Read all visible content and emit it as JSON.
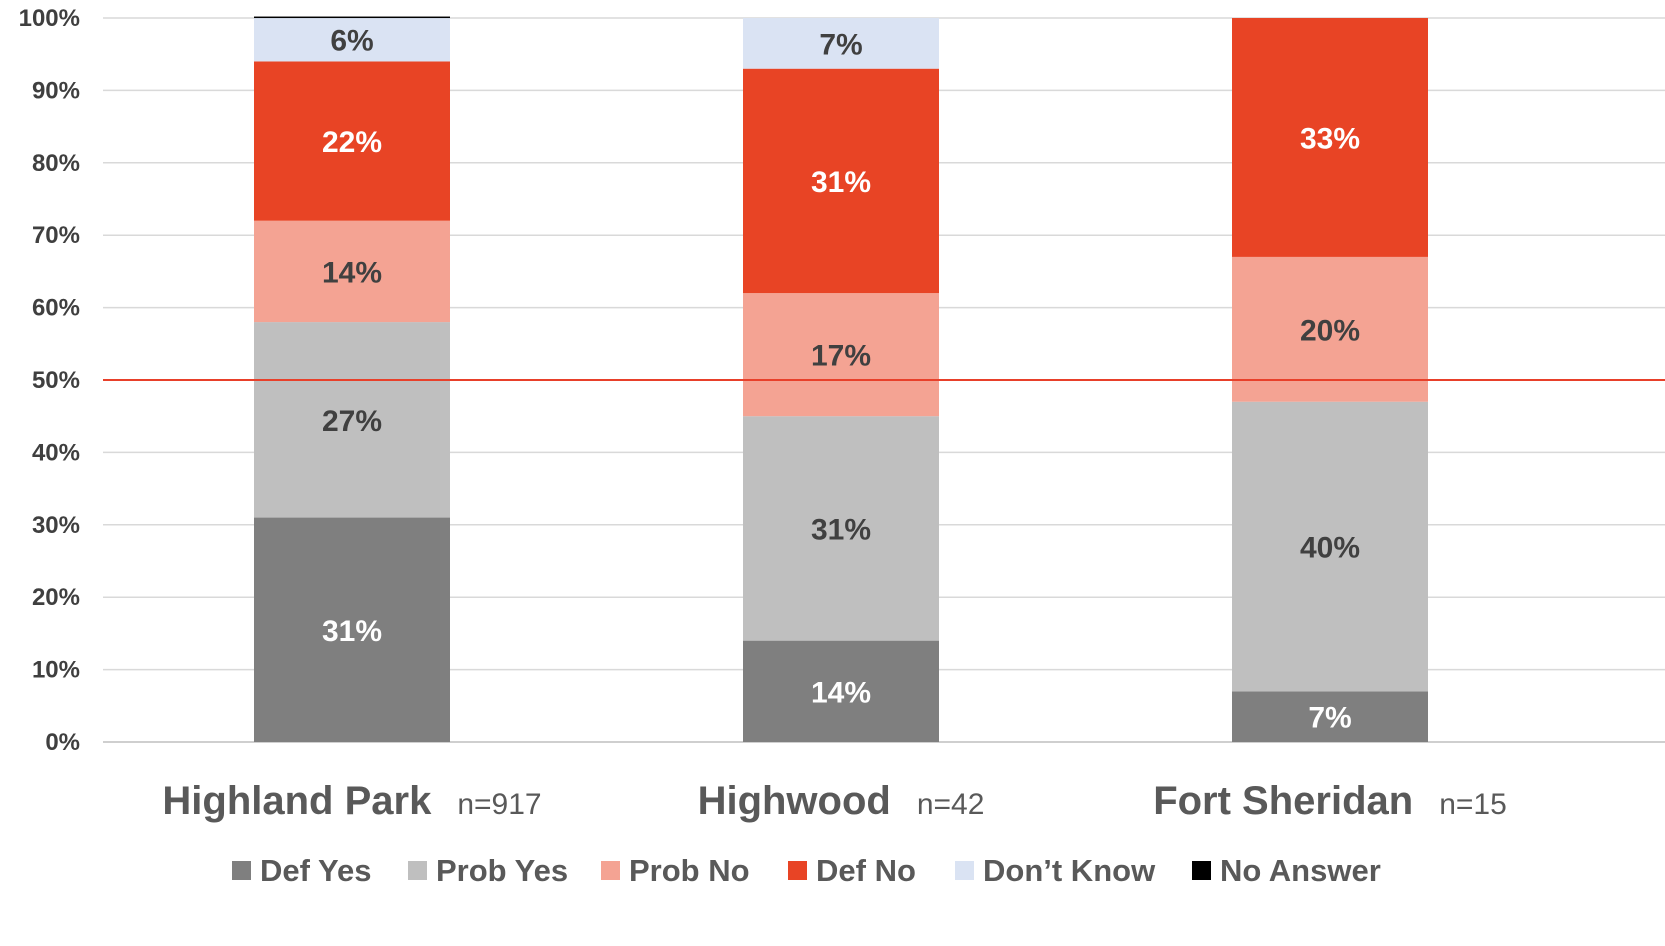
{
  "chart_data": {
    "type": "bar",
    "stacked": true,
    "percent": true,
    "title": "",
    "xlabel": "",
    "ylabel": "",
    "ylim": [
      0,
      100
    ],
    "y_ticks": [
      "0%",
      "10%",
      "20%",
      "30%",
      "40%",
      "50%",
      "60%",
      "70%",
      "80%",
      "90%",
      "100%"
    ],
    "grid": true,
    "reference_line": {
      "value": 50,
      "color": "#e8402a"
    },
    "categories": [
      "Highland Park",
      "Highwood",
      "Fort Sheridan"
    ],
    "sample_sizes": [
      "n=917",
      "n=42",
      "n=15"
    ],
    "legend_position": "bottom",
    "series": [
      {
        "name": "Def Yes",
        "color": "#7f7f7f",
        "label_color": "#ffffff",
        "values": [
          31,
          14,
          7
        ],
        "labels": [
          "31%",
          "14%",
          "7%"
        ]
      },
      {
        "name": "Prob Yes",
        "color": "#bfbfbf",
        "label_color": "#404040",
        "values": [
          27,
          31,
          40
        ],
        "labels": [
          "27%",
          "31%",
          "40%"
        ]
      },
      {
        "name": "Prob No",
        "color": "#f4a393",
        "label_color": "#404040",
        "values": [
          14,
          17,
          20
        ],
        "labels": [
          "14%",
          "17%",
          "20%"
        ]
      },
      {
        "name": "Def No",
        "color": "#e84425",
        "label_color": "#ffffff",
        "values": [
          22,
          31,
          33
        ],
        "labels": [
          "22%",
          "31%",
          "33%"
        ]
      },
      {
        "name": "Don’t Know",
        "color": "#dae3f3",
        "label_color": "#404040",
        "values": [
          6,
          7,
          0
        ],
        "labels": [
          "6%",
          "7%",
          ""
        ]
      },
      {
        "name": "No Answer",
        "color": "#000000",
        "label_color": "#404040",
        "values": [
          0.2,
          0,
          0
        ],
        "labels": [
          "",
          "",
          ""
        ]
      }
    ]
  }
}
